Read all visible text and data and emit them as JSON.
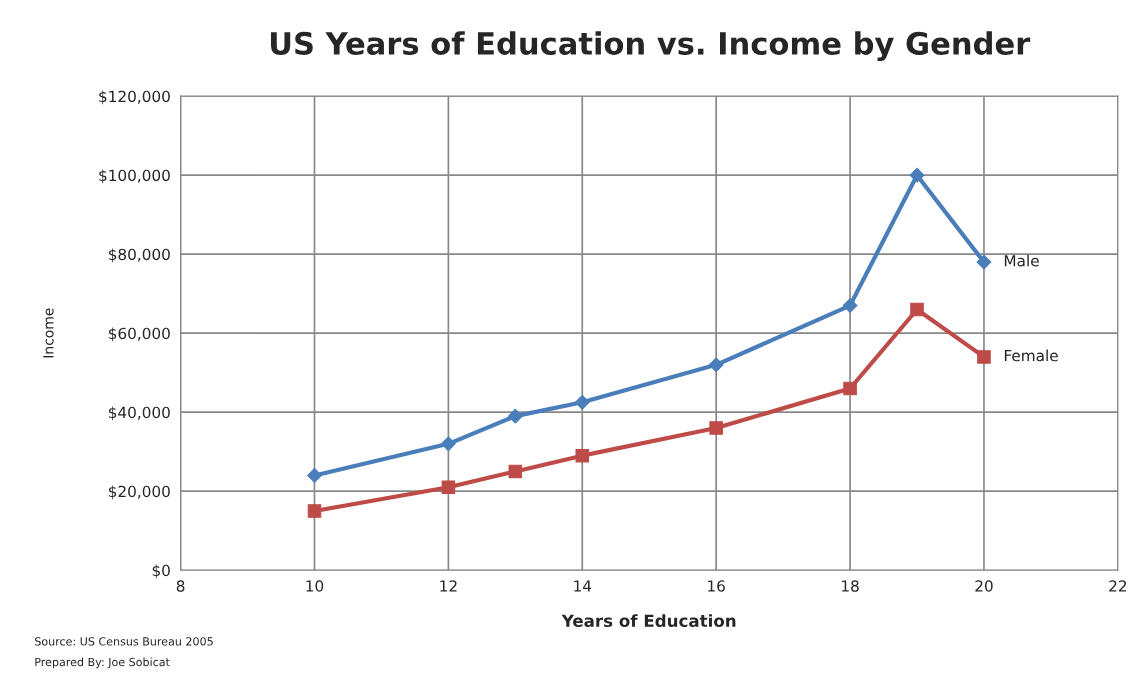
{
  "chart_data": {
    "type": "line",
    "title": "US Years of Education vs. Income by Gender",
    "xlabel": "Years of Education",
    "ylabel": "Income",
    "x": [
      10,
      12,
      13,
      14,
      16,
      18,
      19,
      20
    ],
    "series": [
      {
        "name": "Male",
        "color": "#4a7ebb",
        "marker": "diamond",
        "values": [
          24000,
          32000,
          39000,
          42500,
          52000,
          67000,
          100000,
          78000
        ]
      },
      {
        "name": "Female",
        "color": "#be4b48",
        "marker": "square",
        "values": [
          15000,
          21000,
          25000,
          29000,
          36000,
          46000,
          66000,
          54000
        ]
      }
    ],
    "xlim": [
      8,
      22
    ],
    "xticks": [
      8,
      10,
      12,
      14,
      16,
      18,
      20,
      22
    ],
    "ylim": [
      0,
      120000
    ],
    "yticks": [
      {
        "value": 0,
        "label": "$0"
      },
      {
        "value": 20000,
        "label": "$20,000"
      },
      {
        "value": 40000,
        "label": "$40,000"
      },
      {
        "value": 60000,
        "label": "$60,000"
      },
      {
        "value": 80000,
        "label": "$80,000"
      },
      {
        "value": 100000,
        "label": "$100,000"
      },
      {
        "value": 120000,
        "label": "$120,000"
      }
    ],
    "grid": true,
    "legend": false,
    "line_style": "solid",
    "annotations": [
      "Source: US Census Bureau 2005",
      "Prepared By: Joe Sobicat"
    ]
  }
}
